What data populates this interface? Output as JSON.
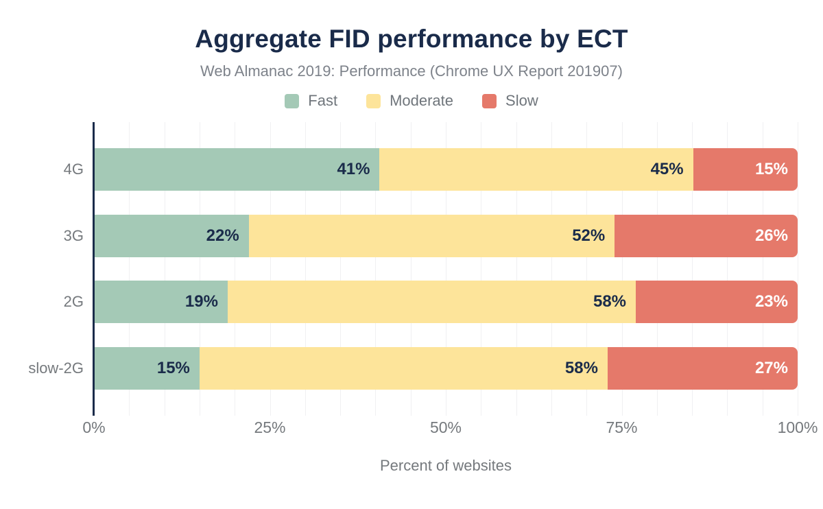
{
  "chart_data": {
    "type": "bar",
    "orientation": "horizontal",
    "stacked": true,
    "title": "Aggregate FID performance by ECT",
    "subtitle": "Web Almanac 2019: Performance (Chrome UX Report 201907)",
    "xlabel": "Percent of websites",
    "categories": [
      "4G",
      "3G",
      "2G",
      "slow-2G"
    ],
    "series": [
      {
        "name": "Fast",
        "color": "#a4c9b6",
        "label_color": "#1a2b4a",
        "values": [
          41,
          22,
          19,
          15
        ]
      },
      {
        "name": "Moderate",
        "color": "#fde49a",
        "label_color": "#1a2b4a",
        "values": [
          45,
          52,
          58,
          58
        ]
      },
      {
        "name": "Slow",
        "color": "#e5796a",
        "label_color": "#ffffff",
        "values": [
          15,
          26,
          23,
          27
        ]
      }
    ],
    "value_suffix": "%",
    "x_ticks": [
      "0%",
      "25%",
      "50%",
      "75%",
      "100%"
    ],
    "xlim": [
      0,
      100
    ],
    "grid": "vertical gridlines every 5%",
    "legend_position": "top"
  },
  "colors": {
    "title": "#1a2b4a",
    "subtitle_text": "#7d828a",
    "axis_text": "#75797d",
    "axis_line": "#1a2b4a",
    "gridline": "#f0f0f2",
    "background": "#ffffff"
  }
}
